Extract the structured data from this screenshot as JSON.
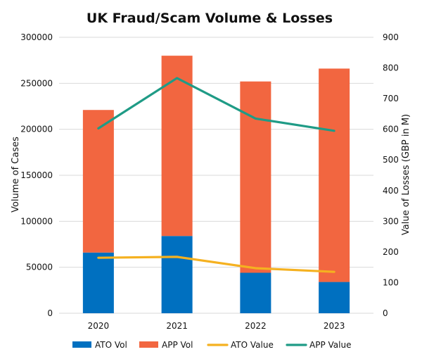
{
  "chart_data": {
    "type": "bar",
    "title": "UK Fraud/Scam Volume & Losses",
    "categories": [
      "2020",
      "2021",
      "2022",
      "2023"
    ],
    "ylabel": "Volume of Cases",
    "y2label": "Value of Losses (GBP in M)",
    "ylim": [
      0,
      300000
    ],
    "y2lim": [
      0,
      900
    ],
    "yticks": [
      "0",
      "50000",
      "100000",
      "150000",
      "200000",
      "250000",
      "300000"
    ],
    "y2ticks": [
      "0",
      "100",
      "200",
      "300",
      "400",
      "500",
      "600",
      "700",
      "800",
      "900"
    ],
    "grid": true,
    "legend_position": "bottom",
    "series": [
      {
        "name": "ATO Vol",
        "kind": "stacked-bar",
        "axis": "left",
        "color": "#0070c0",
        "values": [
          66000,
          84000,
          44000,
          34000
        ]
      },
      {
        "name": "APP Vol",
        "kind": "stacked-bar",
        "axis": "left",
        "color": "#f26640",
        "values": [
          155000,
          196000,
          208000,
          232000
        ]
      },
      {
        "name": "ATO Value",
        "kind": "line",
        "axis": "right",
        "color": "#f5b120",
        "values": [
          181,
          184,
          147,
          135
        ]
      },
      {
        "name": "APP Value",
        "kind": "line",
        "axis": "right",
        "color": "#1f9b86",
        "values": [
          603,
          767,
          635,
          595
        ]
      }
    ]
  }
}
